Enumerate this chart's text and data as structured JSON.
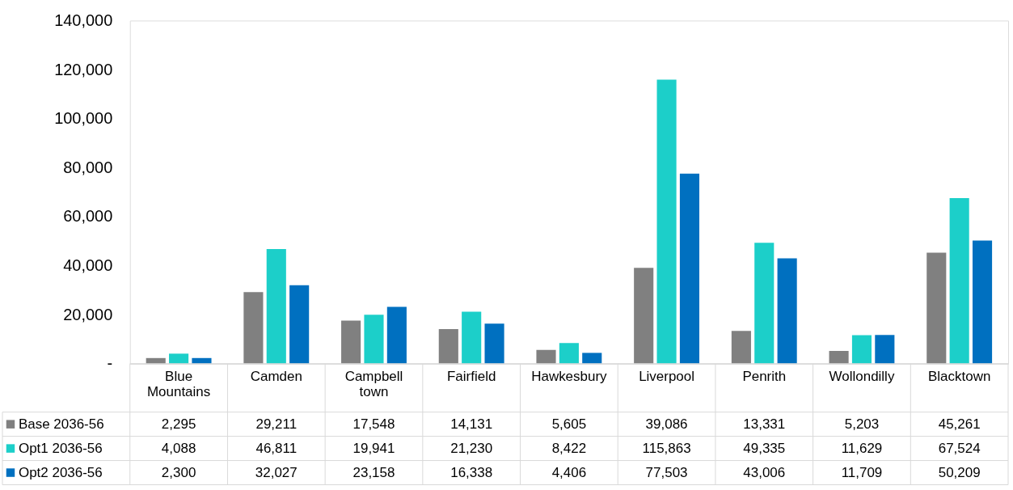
{
  "chart_data": {
    "type": "bar",
    "categories": [
      "Blue Mountains",
      "Camden",
      "Campbell town",
      "Fairfield",
      "Hawkesbury",
      "Liverpool",
      "Penrith",
      "Wollondilly",
      "Blacktown"
    ],
    "series": [
      {
        "name": "Base 2036-56",
        "color": "#808080",
        "values": [
          2295,
          29211,
          17548,
          14131,
          5605,
          39086,
          13331,
          5203,
          45261
        ],
        "value_labels": [
          "2,295",
          "29,211",
          "17,548",
          "14,131",
          "5,605",
          "39,086",
          "13,331",
          "5,203",
          "45,261"
        ]
      },
      {
        "name": "Opt1 2036-56",
        "color": "#1ccfc9",
        "values": [
          4088,
          46811,
          19941,
          21230,
          8422,
          115863,
          49335,
          11629,
          67524
        ],
        "value_labels": [
          "4,088",
          "46,811",
          "19,941",
          "21,230",
          "8,422",
          "115,863",
          "49,335",
          "11,629",
          "67,524"
        ]
      },
      {
        "name": "Opt2 2036-56",
        "color": "#0070c0",
        "values": [
          2300,
          32027,
          23158,
          16338,
          4406,
          77503,
          43006,
          11709,
          50209
        ],
        "value_labels": [
          "2,300",
          "32,027",
          "23,158",
          "16,338",
          "4,406",
          "77,503",
          "43,006",
          "11,709",
          "50,209"
        ]
      }
    ],
    "ylim": [
      0,
      140000
    ],
    "yticks": [
      {
        "value": 0,
        "label": "-"
      },
      {
        "value": 20000,
        "label": "20,000"
      },
      {
        "value": 40000,
        "label": "40,000"
      },
      {
        "value": 60000,
        "label": "60,000"
      },
      {
        "value": 80000,
        "label": "80,000"
      },
      {
        "value": 100000,
        "label": "100,000"
      },
      {
        "value": 120000,
        "label": "120,000"
      },
      {
        "value": 140000,
        "label": "140,000"
      }
    ],
    "grid": false,
    "legend": "bottom left"
  }
}
